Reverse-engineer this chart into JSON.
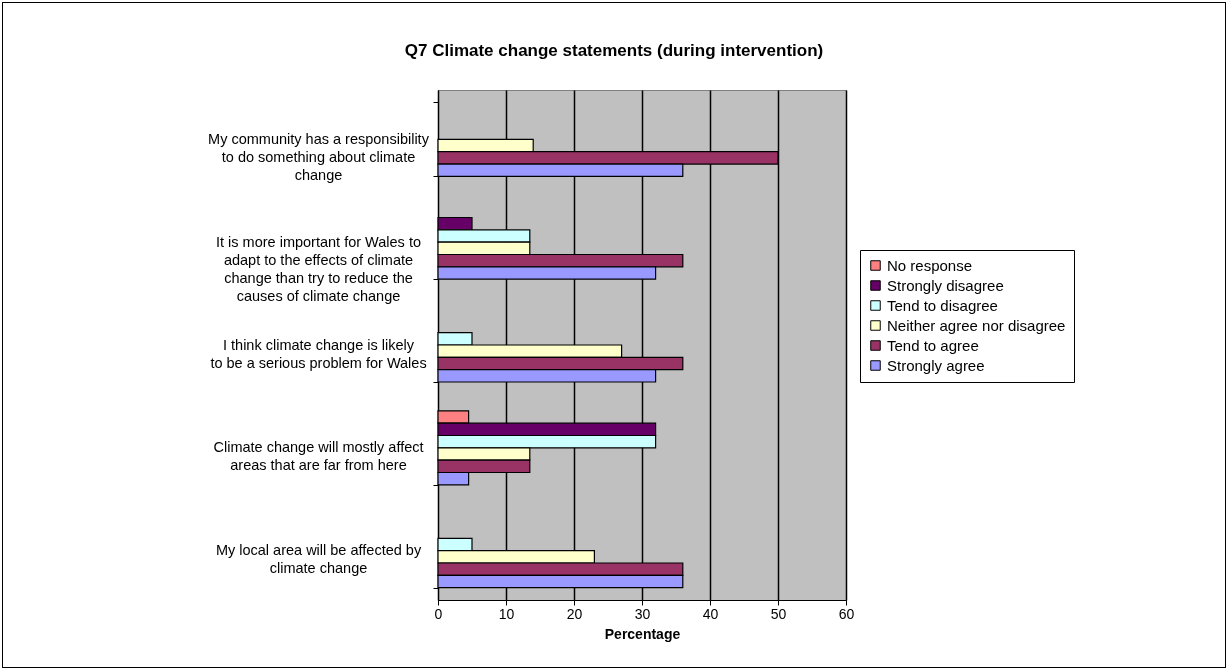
{
  "chart_data": {
    "type": "bar",
    "orientation": "horizontal",
    "title": "Q7 Climate change statements (during intervention)",
    "xlabel": "Percentage",
    "categories": [
      "My community has a responsibility to do something about climate change",
      "It is more important for Wales to adapt to the effects of climate change than try to reduce the causes of climate change",
      "I think climate change is likely to be a serious problem for Wales",
      "Climate change will mostly affect areas that are far from here",
      "My local area will be affected by climate change"
    ],
    "series": [
      {
        "name": "No response",
        "color": "#ff8080",
        "values": [
          null,
          null,
          null,
          4.5,
          null
        ]
      },
      {
        "name": "Strongly disagree",
        "color": "#660066",
        "values": [
          null,
          5,
          null,
          32,
          null
        ]
      },
      {
        "name": "Tend to disagree",
        "color": "#ccffff",
        "values": [
          null,
          13.5,
          5,
          32,
          5
        ]
      },
      {
        "name": "Neither agree nor disagree",
        "color": "#ffffcc",
        "values": [
          14,
          13.5,
          27,
          13.5,
          23
        ]
      },
      {
        "name": "Tend to agree",
        "color": "#993366",
        "values": [
          50,
          36,
          36,
          13.5,
          36
        ]
      },
      {
        "name": "Strongly agree",
        "color": "#9999ff",
        "values": [
          36,
          32,
          32,
          4.5,
          36
        ]
      }
    ],
    "xlim": [
      0,
      60
    ],
    "xticks": [
      0,
      10,
      20,
      30,
      40,
      50,
      60
    ],
    "grid": "x",
    "legend": "right"
  }
}
